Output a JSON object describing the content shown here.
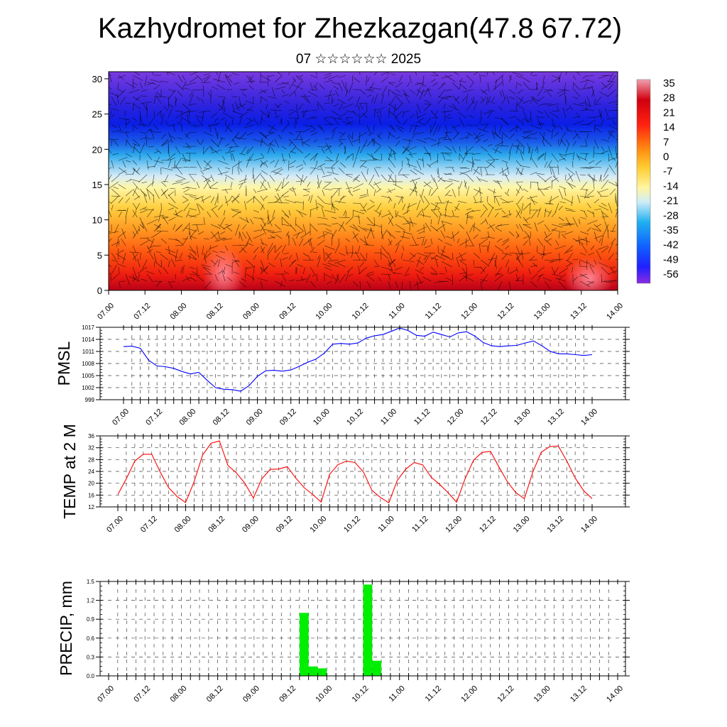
{
  "title": "Kazhydromet for Zhezkazgan(47.8 67.72)",
  "subtitle": "07 ☆☆☆☆☆☆ 2025",
  "time_labels": [
    "07.00",
    "07.12",
    "08.00",
    "08.12",
    "09.00",
    "09.12",
    "10.00",
    "10.12",
    "11.00",
    "11.12",
    "12.00",
    "12.12",
    "13.00",
    "13.12",
    "14.00"
  ],
  "chart_data": [
    {
      "type": "heatmap",
      "title": "",
      "xlabel": "",
      "ylabel": "",
      "x": [
        "07.00",
        "07.12",
        "08.00",
        "08.12",
        "09.00",
        "09.12",
        "10.00",
        "10.12",
        "11.00",
        "11.12",
        "12.00",
        "12.12",
        "13.00",
        "13.12",
        "14.00"
      ],
      "ylim": [
        0,
        31
      ],
      "yticks": [
        0,
        5,
        10,
        15,
        20,
        25,
        30
      ],
      "colorbar_labels": [
        35,
        28,
        21,
        14,
        7,
        0,
        -7,
        -14,
        -21,
        -28,
        -35,
        -42,
        -49,
        -56
      ],
      "overlay": "wind barbs",
      "temperature_profile": [
        {
          "level": 0,
          "value": 30
        },
        {
          "level": 5,
          "value": 21
        },
        {
          "level": 10,
          "value": 7
        },
        {
          "level": 15,
          "value": -10
        },
        {
          "level": 20,
          "value": -35
        },
        {
          "level": 25,
          "value": -56
        },
        {
          "level": 30,
          "value": -60
        }
      ]
    },
    {
      "type": "line",
      "ylabel": "PMSL",
      "ylim": [
        999,
        1017
      ],
      "yticks": [
        999,
        1002,
        1005,
        1008,
        1011,
        1014,
        1017
      ],
      "grid": true,
      "color": "#0000ff",
      "x": [
        7.0,
        7.125,
        7.25,
        7.375,
        7.5,
        7.625,
        7.75,
        7.875,
        8.0,
        8.125,
        8.25,
        8.375,
        8.5,
        8.625,
        8.75,
        8.875,
        9.0,
        9.125,
        9.25,
        9.375,
        9.5,
        9.625,
        9.75,
        9.875,
        10.0,
        10.125,
        10.25,
        10.375,
        10.5,
        10.625,
        10.75,
        10.875,
        11.0,
        11.125,
        11.25,
        11.375,
        11.5,
        11.625,
        11.75,
        11.875,
        12.0,
        12.125,
        12.25,
        12.375,
        12.5,
        12.625,
        12.75,
        12.875,
        13.0,
        13.125,
        13.25,
        13.375,
        13.5,
        13.625,
        13.75,
        13.875,
        14.0
      ],
      "values": [
        1012.2,
        1012.3,
        1011.8,
        1008.8,
        1007.4,
        1007.2,
        1006.8,
        1006.0,
        1005.4,
        1005.8,
        1003.8,
        1002.0,
        1001.6,
        1001.5,
        1001.1,
        1002.5,
        1004.8,
        1006.2,
        1006.3,
        1006.1,
        1006.4,
        1007.3,
        1008.3,
        1009.1,
        1010.6,
        1012.8,
        1013.0,
        1012.8,
        1013.1,
        1014.3,
        1014.9,
        1015.2,
        1016.0,
        1016.8,
        1016.2,
        1015.0,
        1014.8,
        1015.8,
        1015.2,
        1014.6,
        1015.6,
        1015.9,
        1014.8,
        1013.2,
        1012.4,
        1012.2,
        1012.4,
        1012.5,
        1013.1,
        1013.6,
        1012.4,
        1011.0,
        1010.4,
        1010.4,
        1010.2,
        1010.0,
        1010.2
      ]
    },
    {
      "type": "line",
      "ylabel": "TEMP at 2 M",
      "ylim": [
        12,
        36
      ],
      "yticks": [
        12,
        16,
        20,
        24,
        28,
        32,
        36
      ],
      "grid": true,
      "color": "#ff0000",
      "x": [
        7.0,
        7.125,
        7.25,
        7.375,
        7.5,
        7.625,
        7.75,
        7.875,
        8.0,
        8.125,
        8.25,
        8.375,
        8.5,
        8.625,
        8.75,
        8.875,
        9.0,
        9.125,
        9.25,
        9.375,
        9.5,
        9.625,
        9.75,
        9.875,
        10.0,
        10.125,
        10.25,
        10.375,
        10.5,
        10.625,
        10.75,
        10.875,
        11.0,
        11.125,
        11.25,
        11.375,
        11.5,
        11.625,
        11.75,
        11.875,
        12.0,
        12.125,
        12.25,
        12.375,
        12.5,
        12.625,
        12.75,
        12.875,
        13.0,
        13.125,
        13.25,
        13.375,
        13.5,
        13.625,
        13.75,
        13.875,
        14.0
      ],
      "values": [
        16.2,
        21.5,
        27.5,
        29.8,
        29.8,
        23.8,
        18.5,
        15.5,
        13.5,
        20.5,
        29.5,
        33.5,
        34.3,
        26.0,
        23.5,
        20.0,
        15.0,
        21.5,
        24.7,
        24.8,
        25.6,
        21.8,
        18.5,
        16.2,
        13.6,
        23.0,
        26.3,
        27.5,
        27.0,
        23.8,
        17.6,
        15.2,
        13.4,
        21.0,
        24.8,
        27.0,
        26.2,
        22.0,
        19.6,
        16.8,
        13.6,
        21.5,
        27.8,
        30.4,
        30.8,
        25.5,
        20.5,
        16.8,
        14.8,
        23.8,
        30.5,
        32.4,
        32.6,
        27.6,
        21.8,
        17.5,
        14.8
      ]
    },
    {
      "type": "bar",
      "ylabel": "PRECIP, mm",
      "ylim": [
        0,
        1.5
      ],
      "yticks": [
        0.0,
        0.3,
        0.6,
        0.9,
        1.2,
        1.5
      ],
      "grid": true,
      "color": "#00ee00",
      "x": [
        9.625,
        9.75,
        9.875,
        10.5,
        10.625
      ],
      "values": [
        1.0,
        0.15,
        0.12,
        1.45,
        0.24
      ]
    }
  ]
}
